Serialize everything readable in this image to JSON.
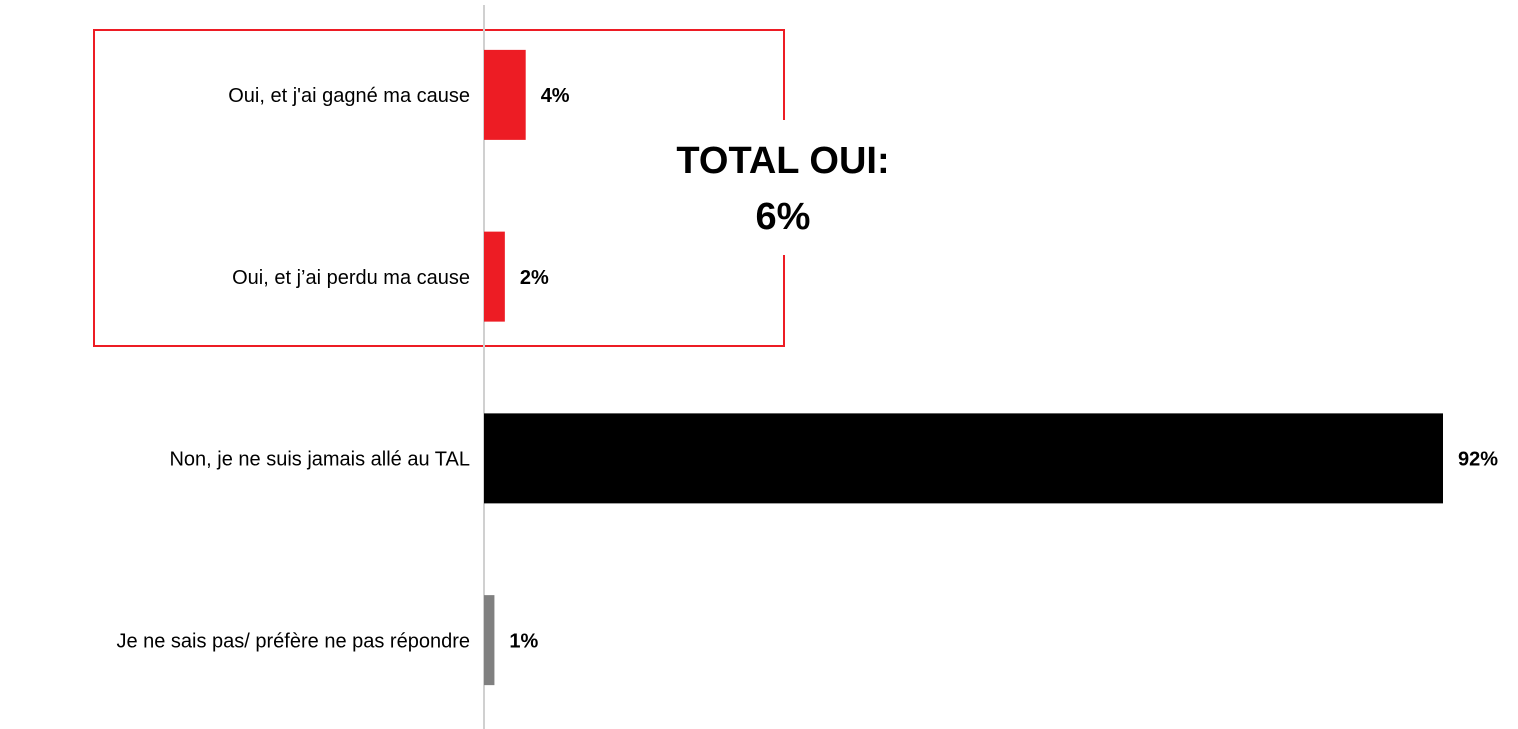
{
  "chart_data": {
    "type": "hbar",
    "categories": [
      "Oui, et j'ai gagné ma cause",
      "Oui, et j’ai perdu ma cause",
      "Non, je ne suis jamais allé au TAL",
      "Je ne sais pas/ préfère ne pas répondre"
    ],
    "values": [
      4,
      2,
      92,
      1
    ],
    "value_labels": [
      "4%",
      "2%",
      "92%",
      "1%"
    ],
    "colors": [
      "#ed1c24",
      "#ed1c24",
      "#000000",
      "#808080"
    ],
    "xlim": [
      0,
      92
    ],
    "annotation": [
      "TOTAL OUI:",
      "6%"
    ]
  }
}
